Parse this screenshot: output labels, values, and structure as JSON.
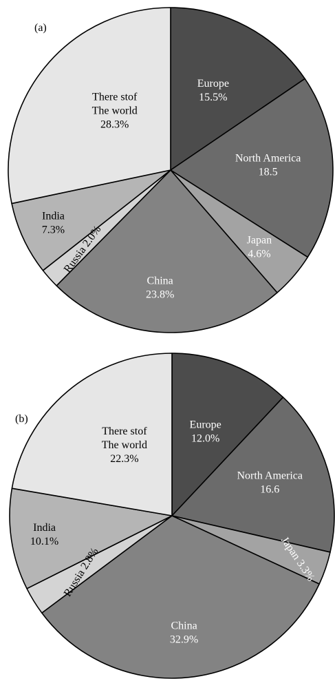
{
  "chart_data": [
    {
      "type": "pie",
      "panel_label": "(a)",
      "start": "12 o'clock",
      "direction": "clockwise",
      "slices": [
        {
          "key": "europe",
          "lines": [
            "Europe",
            "15.5%"
          ],
          "value": 15.5,
          "color": "#4c4c4c",
          "text_color": "#ffffff"
        },
        {
          "key": "north-america",
          "lines": [
            "North America",
            "18.5"
          ],
          "value": 18.5,
          "color": "#6b6b6b",
          "text_color": "#ffffff"
        },
        {
          "key": "japan",
          "lines": [
            "Japan",
            "4.6%"
          ],
          "value": 4.6,
          "color": "#a3a3a3",
          "text_color": "#ffffff"
        },
        {
          "key": "china",
          "lines": [
            "China",
            "23.8%"
          ],
          "value": 23.8,
          "color": "#838383",
          "text_color": "#ffffff"
        },
        {
          "key": "russia",
          "lines": [
            "Russia 2.0%"
          ],
          "value": 2.0,
          "color": "#d4d4d4",
          "text_color": "#000000"
        },
        {
          "key": "india",
          "lines": [
            "India",
            "7.3%"
          ],
          "value": 7.3,
          "color": "#b5b5b5",
          "text_color": "#000000"
        },
        {
          "key": "rest-of-world",
          "lines": [
            "There stof",
            "The world",
            "28.3%"
          ],
          "value": 28.3,
          "color": "#e6e6e6",
          "text_color": "#000000"
        }
      ]
    },
    {
      "type": "pie",
      "panel_label": "(b)",
      "start": "12 o'clock",
      "direction": "clockwise",
      "slices": [
        {
          "key": "europe",
          "lines": [
            "Europe",
            "12.0%"
          ],
          "value": 12.0,
          "color": "#4c4c4c",
          "text_color": "#ffffff"
        },
        {
          "key": "north-america",
          "lines": [
            "North America",
            "16.6"
          ],
          "value": 16.6,
          "color": "#6b6b6b",
          "text_color": "#ffffff"
        },
        {
          "key": "japan",
          "lines": [
            "Japan 3.3%"
          ],
          "value": 3.3,
          "color": "#a3a3a3",
          "text_color": "#ffffff"
        },
        {
          "key": "china",
          "lines": [
            "China",
            "32.9%"
          ],
          "value": 32.9,
          "color": "#838383",
          "text_color": "#ffffff"
        },
        {
          "key": "russia",
          "lines": [
            "Russia 2.8%"
          ],
          "value": 2.8,
          "color": "#d4d4d4",
          "text_color": "#000000"
        },
        {
          "key": "india",
          "lines": [
            "India",
            "10.1%"
          ],
          "value": 10.1,
          "color": "#b5b5b5",
          "text_color": "#000000"
        },
        {
          "key": "rest-of-world",
          "lines": [
            "There stof",
            "The world",
            "22.3%"
          ],
          "value": 22.3,
          "color": "#e6e6e6",
          "text_color": "#000000"
        }
      ]
    }
  ]
}
